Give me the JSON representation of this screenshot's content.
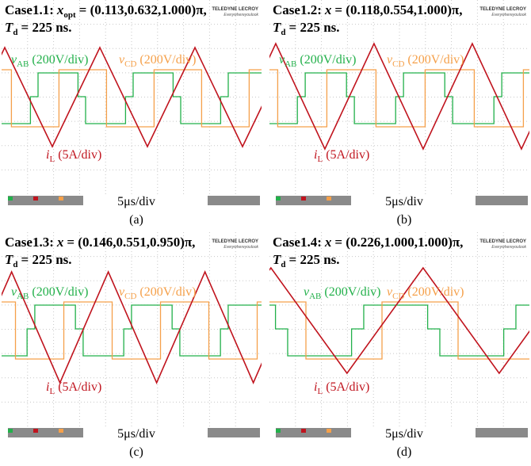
{
  "panels": [
    {
      "case": "Case1.1:",
      "var": "x",
      "var_sub": "opt",
      "vector": "= (0.113,0.632,1.000)π,",
      "td_var": "T",
      "td_sub": "d",
      "td_value": "= 225 ns.",
      "brand": "TELEDYNE LECROY",
      "slogan": "Everywhereyoulook",
      "v_ab": {
        "var": "v",
        "sub": "AB",
        "scale": "(200V/div)"
      },
      "v_cd": {
        "var": "v",
        "sub": "CD",
        "scale": "(200V/div)"
      },
      "i_l": {
        "var": "i",
        "sub": "L",
        "scale": "(5A/div)"
      },
      "timebase": "5μs/div",
      "caption": "(a)"
    },
    {
      "case": "Case1.2:",
      "var": "x",
      "vector": "= (0.118,0.554,1.000)π,",
      "td_var": "T",
      "td_sub": "d",
      "td_value": "= 225 ns.",
      "brand": "TELEDYNE LECROY",
      "slogan": "Everywhereyoulook",
      "v_ab": {
        "var": "v",
        "sub": "AB",
        "scale": "(200V/div)"
      },
      "v_cd": {
        "var": "v",
        "sub": "CD",
        "scale": "(200V/div)"
      },
      "i_l": {
        "var": "i",
        "sub": "L",
        "scale": "(5A/div)"
      },
      "timebase": "5μs/div",
      "caption": "(b)"
    },
    {
      "case": "Case1.3:",
      "var": "x",
      "vector": "= (0.146,0.551,0.950)π,",
      "td_var": "T",
      "td_sub": "d",
      "td_value": "= 225 ns.",
      "brand": "TELEDYNE LECROY",
      "slogan": "Everywhereyoulook",
      "v_ab": {
        "var": "v",
        "sub": "AB",
        "scale": "(200V/div)"
      },
      "v_cd": {
        "var": "v",
        "sub": "CD",
        "scale": "(200V/div)"
      },
      "i_l": {
        "var": "i",
        "sub": "L",
        "scale": "(5A/div)"
      },
      "timebase": "5μs/div",
      "caption": "(c)"
    },
    {
      "case": "Case1.4:",
      "var": "x",
      "vector": "= (0.226,1.000,1.000)π,",
      "td_var": "T",
      "td_sub": "d",
      "td_value": "= 225 ns.",
      "brand": "TELEDYNE LECROY",
      "slogan": "Everywhereyoulook",
      "v_ab": {
        "var": "v",
        "sub": "AB",
        "scale": "(200V/div)"
      },
      "v_cd": {
        "var": "v",
        "sub": "CD",
        "scale": "(200V/div)"
      },
      "i_l": {
        "var": "i",
        "sub": "L",
        "scale": "(5A/div)"
      },
      "timebase": "5μs/div",
      "caption": "(d)"
    }
  ]
}
